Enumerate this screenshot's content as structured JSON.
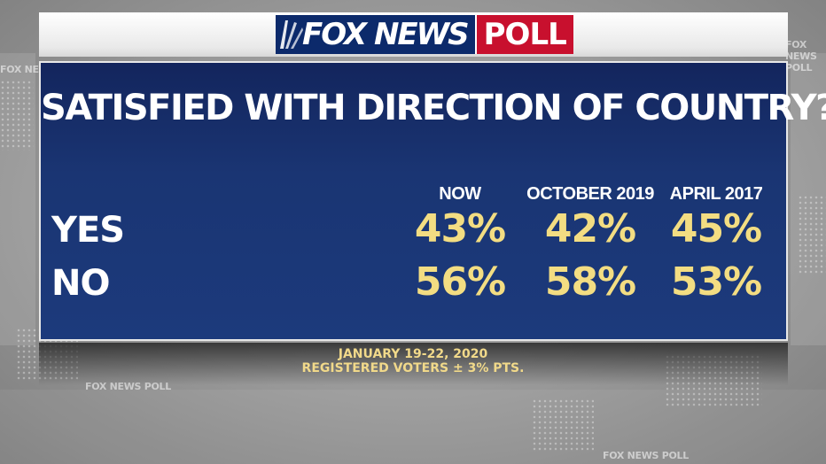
{
  "logo": {
    "brand": "FOX NEWS",
    "suffix": "POLL"
  },
  "chart_data": {
    "type": "table",
    "title": "SATISFIED WITH DIRECTION OF COUNTRY?",
    "columns": [
      "NOW",
      "OCTOBER 2019",
      "APRIL 2017"
    ],
    "rows": [
      {
        "label": "YES",
        "values": [
          "43%",
          "42%",
          "45%"
        ]
      },
      {
        "label": "NO",
        "values": [
          "56%",
          "58%",
          "53%"
        ]
      }
    ],
    "colors": {
      "panel": "#1a3573",
      "value": "#f3dd82",
      "label": "#ffffff",
      "poll_red": "#c8102e"
    }
  },
  "footer": {
    "dates": "JANUARY 19-22, 2020",
    "sample": "REGISTERED VOTERS ± 3% PTS."
  },
  "background_marks": [
    "FOX NEWS POLL",
    "FOX NEWS POLL",
    "FOX NEWS POLL",
    "FOX NEWS POLL"
  ]
}
